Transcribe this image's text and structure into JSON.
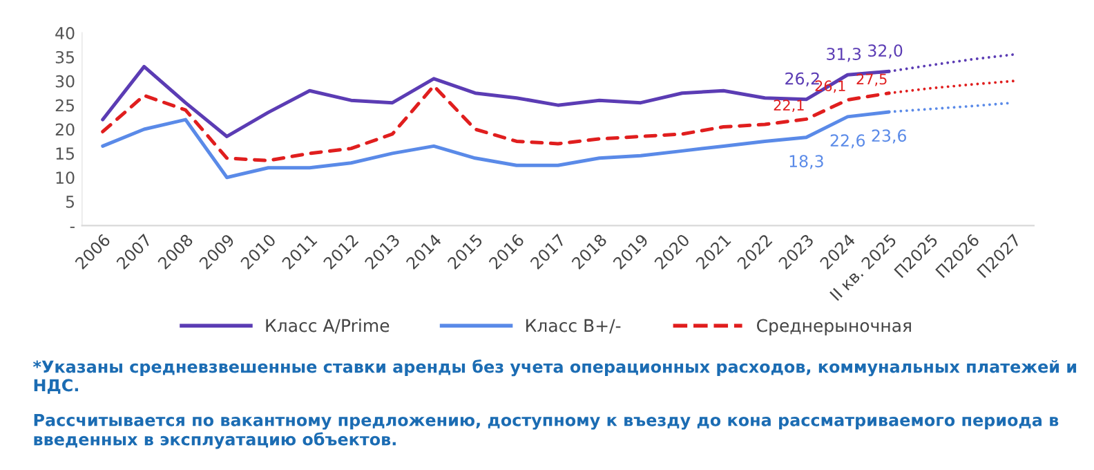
{
  "chart_data": {
    "type": "line",
    "categories": [
      "2006",
      "2007",
      "2008",
      "2009",
      "2010",
      "2011",
      "2012",
      "2013",
      "2014",
      "2015",
      "2016",
      "2017",
      "2018",
      "2019",
      "2020",
      "2021",
      "2022",
      "2023",
      "2024",
      "II кв. 2025",
      "П2025",
      "П2026",
      "П2027"
    ],
    "series": [
      {
        "name": "Класс A/Prime",
        "color": "#5b3cb4",
        "line_style": "solid",
        "values": [
          22,
          33,
          25.5,
          18.5,
          23.5,
          28,
          26,
          25.5,
          30.5,
          27.5,
          26.5,
          25,
          26,
          25.5,
          27.5,
          28,
          26.5,
          26.2,
          31.3,
          32.0,
          null,
          null,
          null
        ],
        "value_labels": [
          null,
          null,
          null,
          null,
          null,
          null,
          null,
          null,
          null,
          null,
          null,
          null,
          null,
          null,
          null,
          null,
          null,
          "26,2",
          "31,3",
          "32,0",
          null,
          null,
          null
        ]
      },
      {
        "name": "Класс B+/-",
        "color": "#5a8ae8",
        "line_style": "solid",
        "values": [
          16.5,
          20,
          22,
          10,
          12,
          12,
          13,
          15,
          16.5,
          14,
          12.5,
          12.5,
          14,
          14.5,
          15.5,
          16.5,
          17.5,
          18.3,
          22.6,
          23.6,
          null,
          null,
          null
        ],
        "value_labels": [
          null,
          null,
          null,
          null,
          null,
          null,
          null,
          null,
          null,
          null,
          null,
          null,
          null,
          null,
          null,
          null,
          null,
          "18,3",
          "22,6",
          "23,6",
          null,
          null,
          null
        ]
      },
      {
        "name": "Среднерыночная",
        "color": "#e01e1e",
        "line_style": "dashed",
        "values": [
          19.5,
          27,
          24,
          14,
          13.5,
          15,
          16,
          19,
          29,
          20,
          17.5,
          17,
          18,
          18.5,
          19,
          20.5,
          21,
          22.1,
          26.1,
          27.5,
          null,
          null,
          null
        ],
        "value_labels": [
          null,
          null,
          null,
          null,
          null,
          null,
          null,
          null,
          null,
          null,
          null,
          null,
          null,
          null,
          null,
          null,
          null,
          "22,1",
          "26,1",
          "27,5",
          null,
          null,
          null
        ]
      },
      {
        "color": "#5b3cb4",
        "line_style": "dotted",
        "values": [
          null,
          null,
          null,
          null,
          null,
          null,
          null,
          null,
          null,
          null,
          null,
          null,
          null,
          null,
          null,
          null,
          null,
          null,
          null,
          32.0,
          33.3,
          34.5,
          35.5
        ]
      },
      {
        "color": "#5a8ae8",
        "line_style": "dotted",
        "values": [
          null,
          null,
          null,
          null,
          null,
          null,
          null,
          null,
          null,
          null,
          null,
          null,
          null,
          null,
          null,
          null,
          null,
          null,
          null,
          23.6,
          24.2,
          24.8,
          25.5
        ]
      },
      {
        "color": "#e01e1e",
        "line_style": "dotted",
        "values": [
          null,
          null,
          null,
          null,
          null,
          null,
          null,
          null,
          null,
          null,
          null,
          null,
          null,
          null,
          null,
          null,
          null,
          null,
          null,
          27.5,
          28.5,
          29.3,
          30.0
        ]
      }
    ],
    "ylim": [
      0,
      40
    ],
    "yticks": [
      {
        "value": 0,
        "label": "-"
      },
      5,
      10,
      15,
      20,
      25,
      30,
      35,
      40
    ],
    "grid": false,
    "legend": "bottom",
    "annotations": [
      "*Указаны средневзвешенные ставки аренды без учета операционных расходов, коммунальных платежей и НДС.",
      "Рассчитывается по вакантному предложению, доступному к въезду до кона рассматриваемого периода в введенных в эксплуатацию объектов."
    ]
  }
}
